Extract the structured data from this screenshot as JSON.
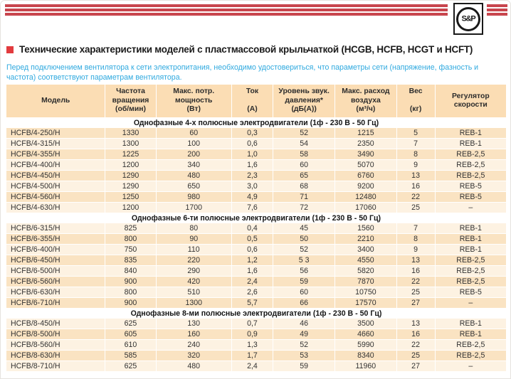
{
  "brand": {
    "logo_text": "S&P"
  },
  "header": {
    "title": "Технические характеристики моделей с пластмассовой крыльчаткой (HCGB, HCFB, HCGT и HCFT)",
    "intro": "Перед подключением вентилятора к сети электропитания, необходимо удостовериться, что параметры сети (напряжение, фазность и частота) соответствуют параметрам вентилятора."
  },
  "colors": {
    "stripe_red": "#C8454D",
    "bullet_red": "#E23B3E",
    "intro_blue": "#2FA9DF",
    "header_bg": "#FBDDB4",
    "row_dark": "#FAE3C2",
    "row_light": "#FDF2E2"
  },
  "table": {
    "columns": [
      {
        "id": "model",
        "label": "Модель"
      },
      {
        "id": "speed",
        "label": "Частота\nвращения\n(об/мин)"
      },
      {
        "id": "power",
        "label": "Макс. потр.\nмощность\n(Вт)"
      },
      {
        "id": "current",
        "label": "Ток\n\n(А)"
      },
      {
        "id": "noise",
        "label": "Уровень звук.\nдавления*\n(дБ(А))"
      },
      {
        "id": "airflow",
        "label": "Макс. расход\nвоздуха\n(м³/ч)"
      },
      {
        "id": "weight",
        "label": "Вес\n\n(кг)"
      },
      {
        "id": "regulator",
        "label": "Регулятор\nскорости"
      }
    ],
    "sections": [
      {
        "title": "Однофазные 4-х полюсные электродвигатели (1ф - 230 В - 50 Гц)",
        "rows": [
          [
            "HCFB/4-250/H",
            "1330",
            "60",
            "0,3",
            "52",
            "1215",
            "5",
            "REB-1"
          ],
          [
            "HCFB/4-315/H",
            "1300",
            "100",
            "0,6",
            "54",
            "2350",
            "7",
            "REB-1"
          ],
          [
            "HCFB/4-355/H",
            "1225",
            "200",
            "1,0",
            "58",
            "3490",
            "8",
            "REB-2,5"
          ],
          [
            "HCFB/4-400/H",
            "1200",
            "340",
            "1,6",
            "60",
            "5070",
            "9",
            "REB-2,5"
          ],
          [
            "HCFB/4-450/H",
            "1290",
            "480",
            "2,3",
            "65",
            "6760",
            "13",
            "REB-2,5"
          ],
          [
            "HCFB/4-500/H",
            "1290",
            "650",
            "3,0",
            "68",
            "9200",
            "16",
            "REB-5"
          ],
          [
            "HCFB/4-560/H",
            "1250",
            "980",
            "4,9",
            "71",
            "12480",
            "22",
            "REB-5"
          ],
          [
            "HCFB/4-630/H",
            "1200",
            "1700",
            "7,6",
            "72",
            "17060",
            "25",
            "–"
          ]
        ]
      },
      {
        "title": "Однофазные 6-ти полюсные электродвигатели (1ф - 230 В - 50 Гц)",
        "rows": [
          [
            "HCFB/6-315/H",
            "825",
            "80",
            "0,4",
            "45",
            "1560",
            "7",
            "REB-1"
          ],
          [
            "HCFB/6-355/H",
            "800",
            "90",
            "0,5",
            "50",
            "2210",
            "8",
            "REB-1"
          ],
          [
            "HCFB/6-400/H",
            "750",
            "110",
            "0,6",
            "52",
            "3400",
            "9",
            "REB-1"
          ],
          [
            "HCFB/6-450/H",
            "835",
            "220",
            "1,2",
            "5 3",
            "4550",
            "13",
            "REB-2,5"
          ],
          [
            "HCFB/6-500/H",
            "840",
            "290",
            "1,6",
            "56",
            "5820",
            "16",
            "REB-2,5"
          ],
          [
            "HCFB/6-560/H",
            "900",
            "420",
            "2,4",
            "59",
            "7870",
            "22",
            "REB-2,5"
          ],
          [
            "HCFB/6-630/H",
            "800",
            "510",
            "2,6",
            "60",
            "10750",
            "25",
            "REB-5"
          ],
          [
            "HCFB/6-710/H",
            "900",
            "1300",
            "5,7",
            "66",
            "17570",
            "27",
            "–"
          ]
        ]
      },
      {
        "title": "Однофазные 8-ми полюсные электродвигатели (1ф - 230 В - 50 Гц)",
        "rows": [
          [
            "HCFB/8-450/H",
            "625",
            "130",
            "0,7",
            "46",
            "3500",
            "13",
            "REB-1"
          ],
          [
            "HCFB/8-500/H",
            "605",
            "160",
            "0,9",
            "49",
            "4660",
            "16",
            "REB-1"
          ],
          [
            "HCFB/8-560/H",
            "610",
            "240",
            "1,3",
            "52",
            "5990",
            "22",
            "REB-2,5"
          ],
          [
            "HCFB/8-630/H",
            "585",
            "320",
            "1,7",
            "53",
            "8340",
            "25",
            "REB-2,5"
          ],
          [
            "HCFB/8-710/H",
            "625",
            "480",
            "2,4",
            "59",
            "11960",
            "27",
            "–"
          ]
        ]
      }
    ]
  }
}
